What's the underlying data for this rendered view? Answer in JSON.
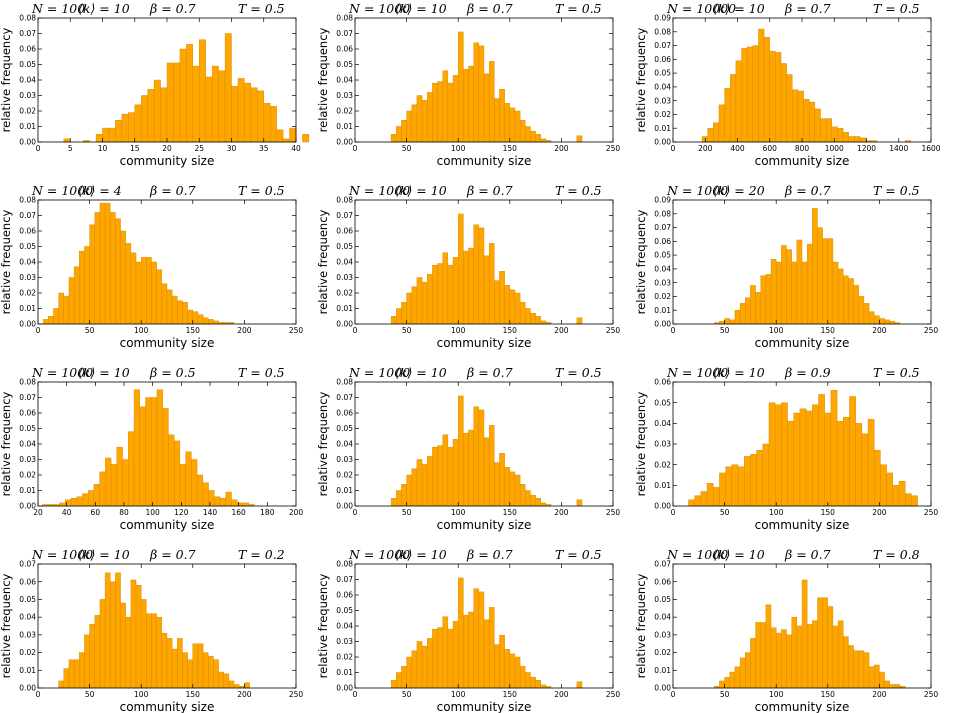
{
  "chart_data": [
    {
      "type": "bar",
      "title_parts": [
        "N = 100",
        "⟨k⟩ = 10",
        "β = 0.7",
        "T = 0.5"
      ],
      "xlabel": "community size",
      "ylabel": "relative frequency",
      "xlim": [
        0,
        40
      ],
      "xticks": [
        0,
        5,
        10,
        15,
        20,
        25,
        30,
        35,
        40
      ],
      "ylim": [
        0,
        0.08
      ],
      "yticks": [
        0.0,
        0.01,
        0.02,
        0.03,
        0.04,
        0.05,
        0.06,
        0.07,
        0.08
      ],
      "ytick_labels": [
        "0.00",
        "0.01",
        "0.02",
        "0.03",
        "0.04",
        "0.05",
        "0.06",
        "0.07",
        "0.08"
      ],
      "bin_start": 4,
      "bin_width": 1,
      "values": [
        0.002,
        0,
        0,
        0.001,
        0,
        0.005,
        0.009,
        0.009,
        0.014,
        0.018,
        0.019,
        0.024,
        0.03,
        0.034,
        0.04,
        0.035,
        0.051,
        0.051,
        0.06,
        0.063,
        0.049,
        0.066,
        0.042,
        0.049,
        0.046,
        0.07,
        0.036,
        0.041,
        0.038,
        0.035,
        0.033,
        0.025,
        0.023,
        0.008,
        0.002,
        0.009,
        0,
        0.005
      ]
    },
    {
      "type": "bar",
      "title_parts": [
        "N = 1000",
        "⟨k⟩ = 10",
        "β = 0.7",
        "T = 0.5"
      ],
      "xlabel": "community size",
      "ylabel": "relative frequency",
      "xlim": [
        0,
        250
      ],
      "xticks": [
        0,
        50,
        100,
        150,
        200,
        250
      ],
      "ylim": [
        0,
        0.08
      ],
      "yticks": [
        0.0,
        0.01,
        0.02,
        0.03,
        0.04,
        0.05,
        0.06,
        0.07,
        0.08
      ],
      "ytick_labels": [
        "0.00",
        "0.01",
        "0.02",
        "0.03",
        "0.04",
        "0.05",
        "0.06",
        "0.07",
        "0.08"
      ],
      "bin_start": 35,
      "bin_width": 5,
      "values": [
        0.005,
        0.01,
        0.014,
        0.02,
        0.024,
        0.03,
        0.027,
        0.032,
        0.038,
        0.039,
        0.046,
        0.038,
        0.043,
        0.071,
        0.047,
        0.049,
        0.064,
        0.062,
        0.044,
        0.052,
        0.028,
        0.034,
        0.025,
        0.022,
        0.02,
        0.014,
        0.01,
        0.007,
        0.005,
        0.002,
        0.001,
        0,
        0,
        0,
        0,
        0,
        0.004
      ]
    },
    {
      "type": "bar",
      "title_parts": [
        "N = 10000",
        "⟨k⟩ = 10",
        "β = 0.7",
        "T = 0.5"
      ],
      "xlabel": "community size",
      "ylabel": "relative frequency",
      "xlim": [
        0,
        1600
      ],
      "xticks": [
        0,
        200,
        400,
        600,
        800,
        1000,
        1200,
        1400,
        1600
      ],
      "ylim": [
        0,
        0.09
      ],
      "yticks": [
        0.0,
        0.01,
        0.02,
        0.03,
        0.04,
        0.05,
        0.06,
        0.07,
        0.08,
        0.09
      ],
      "ytick_labels": [
        "0.00",
        "0.01",
        "0.02",
        "0.03",
        "0.04",
        "0.05",
        "0.06",
        "0.07",
        "0.08",
        "0.09"
      ],
      "bin_start": 180,
      "bin_width": 35,
      "values": [
        0.004,
        0.01,
        0.014,
        0.027,
        0.039,
        0.049,
        0.059,
        0.068,
        0.069,
        0.07,
        0.082,
        0.076,
        0.066,
        0.065,
        0.057,
        0.049,
        0.038,
        0.037,
        0.031,
        0.029,
        0.024,
        0.017,
        0.017,
        0.011,
        0.01,
        0.007,
        0.004,
        0.004,
        0.003,
        0.001,
        0.001,
        0,
        0,
        0,
        0,
        0,
        0.001
      ]
    },
    {
      "type": "bar",
      "title_parts": [
        "N = 1000",
        "⟨k⟩ = 4",
        "β = 0.7",
        "T = 0.5"
      ],
      "xlabel": "community size",
      "ylabel": "relative frequency",
      "xlim": [
        0,
        250
      ],
      "xticks": [
        0,
        50,
        100,
        150,
        200,
        250
      ],
      "ylim": [
        0,
        0.08
      ],
      "yticks": [
        0.0,
        0.01,
        0.02,
        0.03,
        0.04,
        0.05,
        0.06,
        0.07,
        0.08
      ],
      "ytick_labels": [
        "0.00",
        "0.01",
        "0.02",
        "0.03",
        "0.04",
        "0.05",
        "0.06",
        "0.07",
        "0.08"
      ],
      "bin_start": 5,
      "bin_width": 5,
      "values": [
        0.003,
        0.005,
        0.01,
        0.02,
        0.018,
        0.03,
        0.037,
        0.047,
        0.05,
        0.064,
        0.072,
        0.078,
        0.078,
        0.072,
        0.068,
        0.06,
        0.052,
        0.046,
        0.04,
        0.043,
        0.043,
        0.04,
        0.035,
        0.026,
        0.022,
        0.018,
        0.015,
        0.014,
        0.009,
        0.008,
        0.006,
        0.004,
        0.003,
        0.002,
        0.001,
        0.001,
        0.001
      ]
    },
    {
      "type": "bar",
      "title_parts": [
        "N = 1000",
        "⟨k⟩ = 10",
        "β = 0.7",
        "T = 0.5"
      ],
      "xlabel": "community size",
      "ylabel": "relative frequency",
      "xlim": [
        0,
        250
      ],
      "xticks": [
        0,
        50,
        100,
        150,
        200,
        250
      ],
      "ylim": [
        0,
        0.08
      ],
      "yticks": [
        0.0,
        0.01,
        0.02,
        0.03,
        0.04,
        0.05,
        0.06,
        0.07,
        0.08
      ],
      "ytick_labels": [
        "0.00",
        "0.01",
        "0.02",
        "0.03",
        "0.04",
        "0.05",
        "0.06",
        "0.07",
        "0.08"
      ],
      "bin_start": 35,
      "bin_width": 5,
      "values": [
        0.005,
        0.01,
        0.014,
        0.02,
        0.024,
        0.03,
        0.027,
        0.032,
        0.038,
        0.039,
        0.046,
        0.038,
        0.043,
        0.071,
        0.047,
        0.049,
        0.064,
        0.062,
        0.044,
        0.052,
        0.028,
        0.034,
        0.025,
        0.022,
        0.02,
        0.014,
        0.01,
        0.007,
        0.005,
        0.002,
        0.001,
        0,
        0,
        0,
        0,
        0,
        0.004
      ]
    },
    {
      "type": "bar",
      "title_parts": [
        "N = 1000",
        "⟨k⟩ = 20",
        "β = 0.7",
        "T = 0.5"
      ],
      "xlabel": "community size",
      "ylabel": "relative frequency",
      "xlim": [
        0,
        250
      ],
      "xticks": [
        0,
        50,
        100,
        150,
        200,
        250
      ],
      "ylim": [
        0,
        0.09
      ],
      "yticks": [
        0.0,
        0.01,
        0.02,
        0.03,
        0.04,
        0.05,
        0.06,
        0.07,
        0.08,
        0.09
      ],
      "ytick_labels": [
        "0.00",
        "0.01",
        "0.02",
        "0.03",
        "0.04",
        "0.05",
        "0.06",
        "0.07",
        "0.08",
        "0.09"
      ],
      "bin_start": 40,
      "bin_width": 5,
      "values": [
        0.001,
        0.002,
        0.004,
        0.003,
        0.01,
        0.015,
        0.019,
        0.028,
        0.023,
        0.035,
        0.036,
        0.047,
        0.045,
        0.057,
        0.054,
        0.045,
        0.061,
        0.045,
        0.058,
        0.084,
        0.07,
        0.062,
        0.062,
        0.045,
        0.04,
        0.035,
        0.033,
        0.028,
        0.02,
        0.015,
        0.009,
        0.006,
        0.004,
        0.003,
        0.002,
        0.001
      ]
    },
    {
      "type": "bar",
      "title_parts": [
        "N = 1000",
        "⟨k⟩ = 10",
        "β = 0.5",
        "T = 0.5"
      ],
      "xlabel": "community size",
      "ylabel": "relative frequency",
      "xlim": [
        20,
        200
      ],
      "xticks": [
        20,
        40,
        60,
        80,
        100,
        120,
        140,
        160,
        180,
        200
      ],
      "ylim": [
        0,
        0.08
      ],
      "yticks": [
        0.0,
        0.01,
        0.02,
        0.03,
        0.04,
        0.05,
        0.06,
        0.07,
        0.08
      ],
      "ytick_labels": [
        "0.00",
        "0.01",
        "0.02",
        "0.03",
        "0.04",
        "0.05",
        "0.06",
        "0.07",
        "0.08"
      ],
      "bin_start": 23,
      "bin_width": 4,
      "values": [
        0.001,
        0.001,
        0.001,
        0.002,
        0.004,
        0.005,
        0.006,
        0.008,
        0.01,
        0.014,
        0.022,
        0.031,
        0.027,
        0.038,
        0.03,
        0.048,
        0.075,
        0.064,
        0.07,
        0.07,
        0.075,
        0.063,
        0.046,
        0.042,
        0.027,
        0.035,
        0.03,
        0.02,
        0.015,
        0.01,
        0.006,
        0.005,
        0.009,
        0.004,
        0.002,
        0.002,
        0.001
      ]
    },
    {
      "type": "bar",
      "title_parts": [
        "N = 1000",
        "⟨k⟩ = 10",
        "β = 0.7",
        "T = 0.5"
      ],
      "xlabel": "community size",
      "ylabel": "relative frequency",
      "xlim": [
        0,
        250
      ],
      "xticks": [
        0,
        50,
        100,
        150,
        200,
        250
      ],
      "ylim": [
        0,
        0.08
      ],
      "yticks": [
        0.0,
        0.01,
        0.02,
        0.03,
        0.04,
        0.05,
        0.06,
        0.07,
        0.08
      ],
      "ytick_labels": [
        "0.00",
        "0.01",
        "0.02",
        "0.03",
        "0.04",
        "0.05",
        "0.06",
        "0.07",
        "0.08"
      ],
      "bin_start": 35,
      "bin_width": 5,
      "values": [
        0.005,
        0.01,
        0.014,
        0.02,
        0.024,
        0.03,
        0.027,
        0.032,
        0.038,
        0.039,
        0.046,
        0.038,
        0.043,
        0.071,
        0.047,
        0.049,
        0.064,
        0.062,
        0.044,
        0.052,
        0.028,
        0.034,
        0.025,
        0.022,
        0.02,
        0.014,
        0.01,
        0.007,
        0.005,
        0.002,
        0.001,
        0,
        0,
        0,
        0,
        0,
        0.004
      ]
    },
    {
      "type": "bar",
      "title_parts": [
        "N = 1000",
        "⟨k⟩ = 10",
        "β = 0.9",
        "T = 0.5"
      ],
      "xlabel": "community size",
      "ylabel": "relative frequency",
      "xlim": [
        0,
        250
      ],
      "xticks": [
        0,
        50,
        100,
        150,
        200,
        250
      ],
      "ylim": [
        0,
        0.06
      ],
      "yticks": [
        0.0,
        0.01,
        0.02,
        0.03,
        0.04,
        0.05,
        0.06
      ],
      "ytick_labels": [
        "0.00",
        "0.01",
        "0.02",
        "0.03",
        "0.04",
        "0.05",
        "0.06"
      ],
      "bin_start": 15,
      "bin_width": 6,
      "values": [
        0.003,
        0.005,
        0.007,
        0.011,
        0.009,
        0.016,
        0.019,
        0.02,
        0.019,
        0.024,
        0.025,
        0.027,
        0.03,
        0.05,
        0.049,
        0.05,
        0.041,
        0.045,
        0.047,
        0.046,
        0.049,
        0.054,
        0.045,
        0.056,
        0.041,
        0.043,
        0.053,
        0.04,
        0.035,
        0.042,
        0.027,
        0.02,
        0.016,
        0.01,
        0.012,
        0.006,
        0.005
      ]
    },
    {
      "type": "bar",
      "title_parts": [
        "N = 1000",
        "⟨k⟩ = 10",
        "β = 0.7",
        "T = 0.2"
      ],
      "xlabel": "community size",
      "ylabel": "relative frequency",
      "xlim": [
        0,
        250
      ],
      "xticks": [
        0,
        50,
        100,
        150,
        200,
        250
      ],
      "ylim": [
        0,
        0.07
      ],
      "yticks": [
        0.0,
        0.01,
        0.02,
        0.03,
        0.04,
        0.05,
        0.06,
        0.07
      ],
      "ytick_labels": [
        "0.00",
        "0.01",
        "0.02",
        "0.03",
        "0.04",
        "0.05",
        "0.06",
        "0.07"
      ],
      "bin_start": 20,
      "bin_width": 5,
      "values": [
        0.004,
        0.011,
        0.016,
        0.016,
        0.02,
        0.03,
        0.036,
        0.041,
        0.05,
        0.065,
        0.06,
        0.065,
        0.048,
        0.04,
        0.061,
        0.058,
        0.05,
        0.042,
        0.042,
        0.04,
        0.031,
        0.028,
        0.022,
        0.028,
        0.02,
        0.016,
        0.025,
        0.025,
        0.02,
        0.018,
        0.016,
        0.009,
        0.008,
        0.004,
        0.002,
        0.001,
        0.003
      ]
    },
    {
      "type": "bar",
      "title_parts": [
        "N = 1000",
        "⟨k⟩ = 10",
        "β = 0.7",
        "T = 0.5"
      ],
      "xlabel": "community size",
      "ylabel": "relative frequency",
      "xlim": [
        0,
        250
      ],
      "xticks": [
        0,
        50,
        100,
        150,
        200,
        250
      ],
      "ylim": [
        0,
        0.08
      ],
      "yticks": [
        0.0,
        0.01,
        0.02,
        0.03,
        0.04,
        0.05,
        0.06,
        0.07,
        0.08
      ],
      "ytick_labels": [
        "0.00",
        "0.01",
        "0.02",
        "0.03",
        "0.04",
        "0.05",
        "0.06",
        "0.07",
        "0.08"
      ],
      "bin_start": 35,
      "bin_width": 5,
      "values": [
        0.005,
        0.01,
        0.014,
        0.02,
        0.024,
        0.03,
        0.027,
        0.032,
        0.038,
        0.039,
        0.046,
        0.038,
        0.043,
        0.071,
        0.047,
        0.049,
        0.064,
        0.062,
        0.044,
        0.052,
        0.028,
        0.034,
        0.025,
        0.022,
        0.02,
        0.014,
        0.01,
        0.007,
        0.005,
        0.002,
        0.001,
        0,
        0,
        0,
        0,
        0,
        0.004
      ]
    },
    {
      "type": "bar",
      "title_parts": [
        "N = 1000",
        "⟨k⟩ = 10",
        "β = 0.7",
        "T = 0.8"
      ],
      "xlabel": "community size",
      "ylabel": "relative frequency",
      "xlim": [
        0,
        250
      ],
      "xticks": [
        0,
        50,
        100,
        150,
        200,
        250
      ],
      "ylim": [
        0,
        0.07
      ],
      "yticks": [
        0.0,
        0.01,
        0.02,
        0.03,
        0.04,
        0.05,
        0.06,
        0.07
      ],
      "ytick_labels": [
        "0.00",
        "0.01",
        "0.02",
        "0.03",
        "0.04",
        "0.05",
        "0.06",
        "0.07"
      ],
      "bin_start": 40,
      "bin_width": 5,
      "values": [
        0.001,
        0.004,
        0.006,
        0.009,
        0.012,
        0.017,
        0.02,
        0.028,
        0.037,
        0.037,
        0.047,
        0.034,
        0.031,
        0.033,
        0.03,
        0.04,
        0.035,
        0.061,
        0.036,
        0.038,
        0.051,
        0.051,
        0.046,
        0.035,
        0.038,
        0.029,
        0.024,
        0.021,
        0.021,
        0.02,
        0.012,
        0.013,
        0.009,
        0.004,
        0.002,
        0.002,
        0.001
      ]
    }
  ]
}
